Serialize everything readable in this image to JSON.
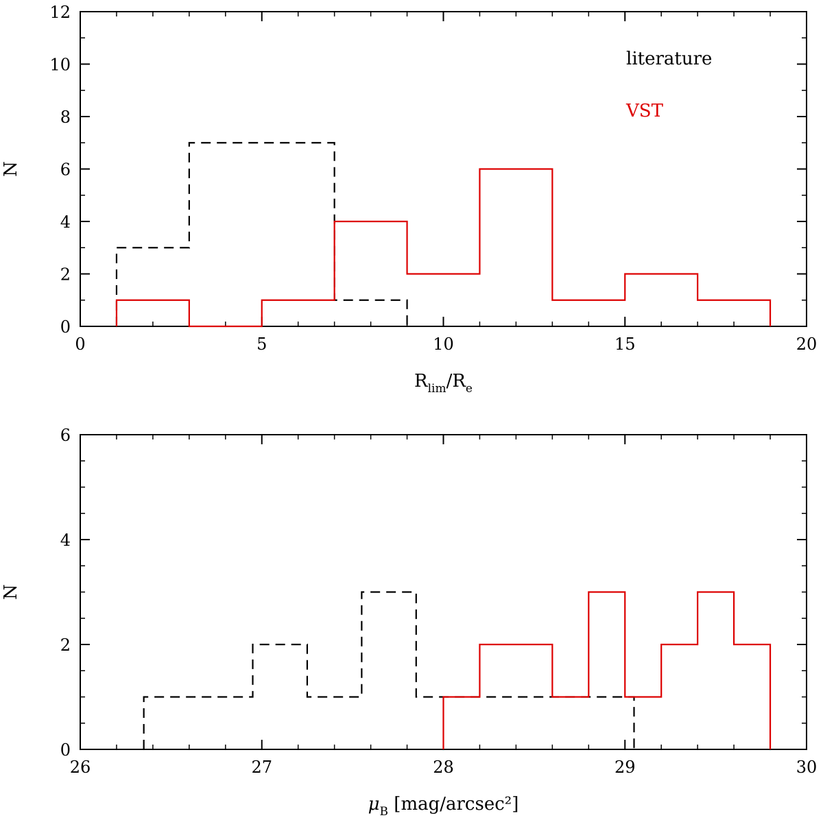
{
  "chart_data": [
    {
      "type": "histogram",
      "xlabel": {
        "main": "R",
        "sub1": "lim",
        "mid": "/R",
        "sub2": "e"
      },
      "ylabel": "N",
      "xlim": [
        0,
        20
      ],
      "ylim": [
        0,
        12
      ],
      "xticks": [
        0,
        5,
        10,
        15,
        20
      ],
      "xtick_labels": [
        "0",
        "5",
        "10",
        "15",
        "20"
      ],
      "yticks": [
        0,
        2,
        4,
        6,
        8,
        10,
        12
      ],
      "ytick_labels": [
        "0",
        "2",
        "4",
        "6",
        "8",
        "10",
        "12"
      ],
      "legend": {
        "placement": "top-right",
        "entries": [
          "literature",
          "VST"
        ]
      },
      "series": [
        {
          "name": "literature",
          "style": "dashed",
          "color": "#000000",
          "bins": [
            {
              "lo": 1,
              "hi": 3,
              "n": 3
            },
            {
              "lo": 3,
              "hi": 7,
              "n": 7
            },
            {
              "lo": 7,
              "hi": 9,
              "n": 1
            }
          ]
        },
        {
          "name": "VST",
          "style": "solid",
          "color": "#dd0000",
          "bins": [
            {
              "lo": 1,
              "hi": 3,
              "n": 1
            },
            {
              "lo": 3,
              "hi": 5,
              "n": 0
            },
            {
              "lo": 5,
              "hi": 7,
              "n": 1
            },
            {
              "lo": 7,
              "hi": 9,
              "n": 4
            },
            {
              "lo": 9,
              "hi": 11,
              "n": 2
            },
            {
              "lo": 11,
              "hi": 13,
              "n": 6
            },
            {
              "lo": 13,
              "hi": 15,
              "n": 1
            },
            {
              "lo": 15,
              "hi": 17,
              "n": 2
            },
            {
              "lo": 17,
              "hi": 19,
              "n": 1
            }
          ]
        }
      ]
    },
    {
      "type": "histogram",
      "xlabel": {
        "main": "μ",
        "sub1": "B",
        "unit": "[mag/arcsec²]"
      },
      "ylabel": "N",
      "xlim": [
        26,
        30
      ],
      "ylim": [
        0,
        6
      ],
      "xticks": [
        26,
        27,
        28,
        29,
        30
      ],
      "xtick_labels": [
        "26",
        "27",
        "28",
        "29",
        "30"
      ],
      "yticks": [
        0,
        2,
        4,
        6
      ],
      "ytick_labels": [
        "0",
        "2",
        "4",
        "6"
      ],
      "series": [
        {
          "name": "literature",
          "style": "dashed",
          "color": "#000000",
          "bins": [
            {
              "lo": 26.35,
              "hi": 26.95,
              "n": 1
            },
            {
              "lo": 26.95,
              "hi": 27.25,
              "n": 2
            },
            {
              "lo": 27.25,
              "hi": 27.55,
              "n": 1
            },
            {
              "lo": 27.55,
              "hi": 27.85,
              "n": 3
            },
            {
              "lo": 27.85,
              "hi": 29.05,
              "n": 1
            }
          ]
        },
        {
          "name": "VST",
          "style": "solid",
          "color": "#dd0000",
          "bins": [
            {
              "lo": 28.0,
              "hi": 28.2,
              "n": 1
            },
            {
              "lo": 28.2,
              "hi": 28.6,
              "n": 2
            },
            {
              "lo": 28.6,
              "hi": 28.8,
              "n": 1
            },
            {
              "lo": 28.8,
              "hi": 29.0,
              "n": 3
            },
            {
              "lo": 29.0,
              "hi": 29.2,
              "n": 1
            },
            {
              "lo": 29.2,
              "hi": 29.4,
              "n": 2
            },
            {
              "lo": 29.4,
              "hi": 29.6,
              "n": 3
            },
            {
              "lo": 29.6,
              "hi": 29.8,
              "n": 2
            }
          ]
        }
      ]
    }
  ]
}
